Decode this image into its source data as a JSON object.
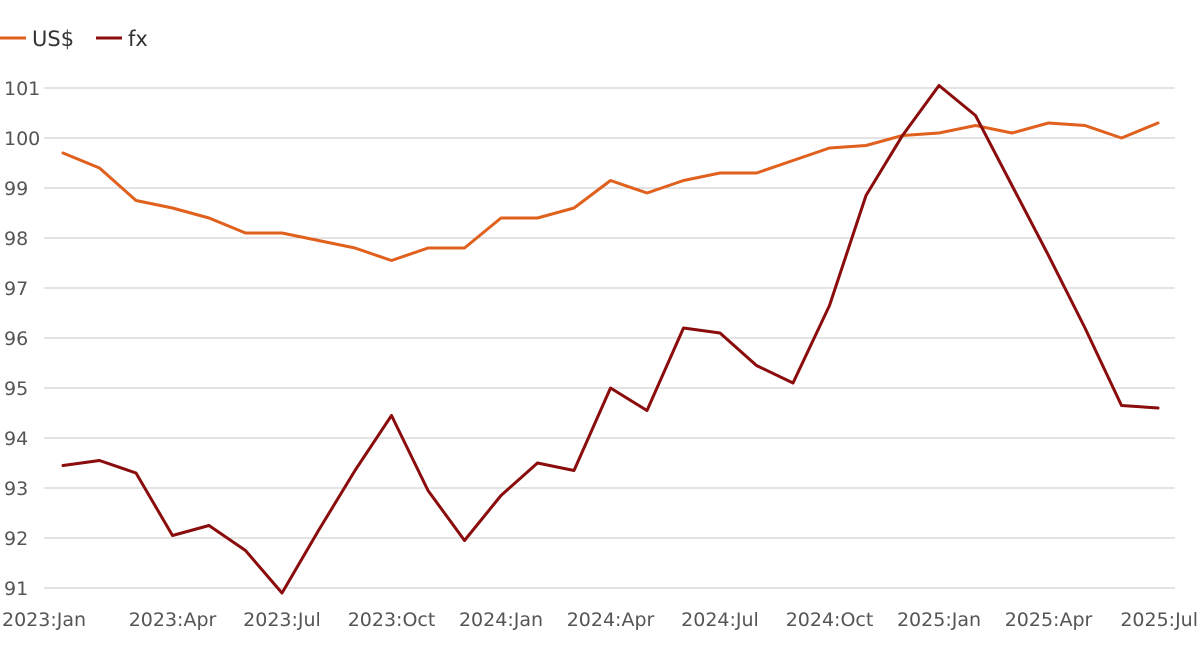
{
  "chart_data": {
    "type": "line",
    "title": "",
    "xlabel": "",
    "ylabel": "",
    "ylim": [
      91,
      101
    ],
    "yticks": [
      91,
      92,
      93,
      94,
      95,
      96,
      97,
      98,
      99,
      100,
      101
    ],
    "grid": true,
    "legend_position": "top-left",
    "x": [
      "2023:Jan",
      "2023:Feb",
      "2023:Mar",
      "2023:Apr",
      "2023:May",
      "2023:Jun",
      "2023:Jul",
      "2023:Aug",
      "2023:Sep",
      "2023:Oct",
      "2023:Nov",
      "2023:Dec",
      "2024:Jan",
      "2024:Feb",
      "2024:Mar",
      "2024:Apr",
      "2024:May",
      "2024:Jun",
      "2024:Jul",
      "2024:Aug",
      "2024:Sep",
      "2024:Oct",
      "2024:Nov",
      "2024:Dec",
      "2025:Jan",
      "2025:Feb",
      "2025:Mar",
      "2025:Apr",
      "2025:May",
      "2025:Jun",
      "2025:Jul"
    ],
    "xtick_labels": [
      "2023:Jan",
      "2023:Apr",
      "2023:Jul",
      "2023:Oct",
      "2024:Jan",
      "2024:Apr",
      "2024:Jul",
      "2024:Oct",
      "2025:Jan",
      "2025:Apr",
      "2025:Jul"
    ],
    "series": [
      {
        "name": "US$",
        "color": "#e0601e",
        "values": [
          99.7,
          99.4,
          98.75,
          98.6,
          98.4,
          98.1,
          98.1,
          97.95,
          97.8,
          97.55,
          97.8,
          97.8,
          98.4,
          98.4,
          98.6,
          99.15,
          98.9,
          99.15,
          99.3,
          99.3,
          99.55,
          99.8,
          99.85,
          100.05,
          100.1,
          100.25,
          100.1,
          100.3,
          100.25,
          100.0,
          100.3
        ]
      },
      {
        "name": "fx",
        "color": "#8a0c0c",
        "values": [
          93.45,
          93.55,
          93.3,
          92.05,
          92.25,
          91.75,
          90.9,
          92.15,
          93.35,
          94.45,
          92.95,
          91.95,
          92.85,
          93.5,
          93.35,
          95.0,
          94.55,
          96.2,
          96.1,
          95.45,
          95.1,
          96.65,
          98.85,
          100.05,
          101.05,
          100.45,
          99.05,
          97.65,
          96.2,
          94.65,
          94.6
        ]
      }
    ]
  }
}
